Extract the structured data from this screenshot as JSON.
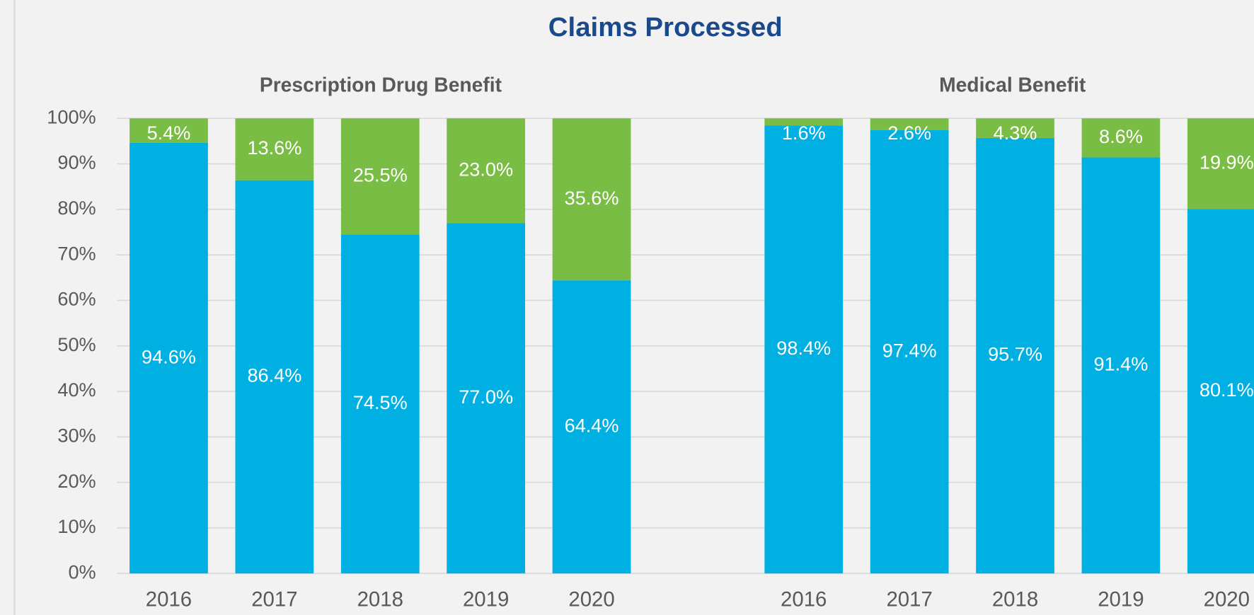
{
  "title": "Claims Processed",
  "chart_data": [
    {
      "type": "stacked_bar",
      "title": "Prescription Drug Benefit",
      "categories": [
        "2016",
        "2017",
        "2018",
        "2019",
        "2020"
      ],
      "series": [
        {
          "color": "#00b0e2",
          "values": [
            94.6,
            86.4,
            74.5,
            77.0,
            64.4
          ],
          "value_labels": [
            "94.6%",
            "86.4%",
            "74.5%",
            "77.0%",
            "64.4%"
          ]
        },
        {
          "color": "#7abd45",
          "values": [
            5.4,
            13.6,
            25.5,
            23.0,
            35.6
          ],
          "value_labels": [
            "5.4%",
            "13.6%",
            "25.5%",
            "23.0%",
            "35.6%"
          ]
        }
      ],
      "ylim": [
        0,
        100
      ],
      "yticks": [
        {
          "value": 0,
          "label": "0%"
        },
        {
          "value": 10,
          "label": "10%"
        },
        {
          "value": 20,
          "label": "20%"
        },
        {
          "value": 30,
          "label": "30%"
        },
        {
          "value": 40,
          "label": "40%"
        },
        {
          "value": 50,
          "label": "50%"
        },
        {
          "value": 60,
          "label": "60%"
        },
        {
          "value": 70,
          "label": "70%"
        },
        {
          "value": 80,
          "label": "80%"
        },
        {
          "value": 90,
          "label": "90%"
        },
        {
          "value": 100,
          "label": "100%"
        }
      ],
      "grid": true
    },
    {
      "type": "stacked_bar",
      "title": "Medical Benefit",
      "categories": [
        "2016",
        "2017",
        "2018",
        "2019",
        "2020"
      ],
      "series": [
        {
          "color": "#00b0e2",
          "values": [
            98.4,
            97.4,
            95.7,
            91.4,
            80.1
          ],
          "value_labels": [
            "98.4%",
            "97.4%",
            "95.7%",
            "91.4%",
            "80.1%"
          ]
        },
        {
          "color": "#7abd45",
          "values": [
            1.6,
            2.6,
            4.3,
            8.6,
            19.9
          ],
          "value_labels": [
            "1.6%",
            "2.6%",
            "4.3%",
            "8.6%",
            "19.9%"
          ]
        }
      ],
      "ylim": [
        0,
        100
      ]
    }
  ]
}
